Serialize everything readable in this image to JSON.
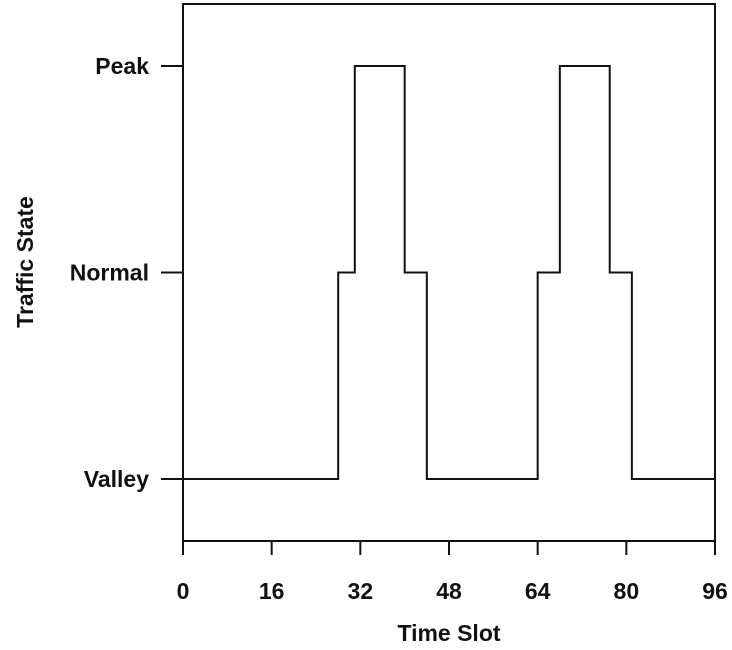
{
  "chart_data": {
    "type": "line",
    "xlabel": "Time Slot",
    "ylabel": "Traffic State",
    "x_ticks": [
      0,
      16,
      32,
      48,
      64,
      80,
      96
    ],
    "y_categories": [
      "Valley",
      "Normal",
      "Peak"
    ],
    "xlim": [
      0,
      96
    ],
    "ylim": [
      -0.3,
      2.3
    ],
    "grid": false,
    "series": [
      {
        "step": "post",
        "points": [
          {
            "x": 0,
            "y": "Valley"
          },
          {
            "x": 28,
            "y": "Normal"
          },
          {
            "x": 31,
            "y": "Peak"
          },
          {
            "x": 40,
            "y": "Normal"
          },
          {
            "x": 44,
            "y": "Valley"
          },
          {
            "x": 64,
            "y": "Normal"
          },
          {
            "x": 68,
            "y": "Peak"
          },
          {
            "x": 77,
            "y": "Normal"
          },
          {
            "x": 81,
            "y": "Valley"
          },
          {
            "x": 96,
            "y": "Valley"
          }
        ]
      }
    ]
  }
}
